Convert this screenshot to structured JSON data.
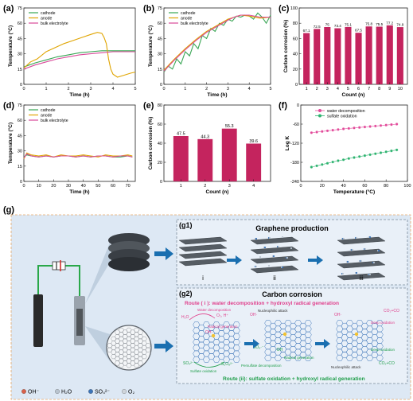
{
  "panel_labels": {
    "a": "(a)",
    "b": "(b)",
    "c": "(c)",
    "d": "(d)",
    "e": "(e)",
    "f": "(f)",
    "g": "(g)"
  },
  "colors": {
    "cathode": "#3aa655",
    "anode": "#e0a400",
    "bulk": "#d94a9a",
    "bar": "#c4245e",
    "water": "#e24a9a",
    "sulfate": "#2db36f",
    "panel_bg": "#dfeaf6"
  },
  "chart_data": [
    {
      "id": "a",
      "type": "line",
      "xlabel": "Time (h)",
      "ylabel": "Temperature (°C)",
      "xlim": [
        0,
        5
      ],
      "ylim": [
        0,
        75
      ],
      "xticks": [
        0,
        1,
        2,
        3,
        4,
        5
      ],
      "yticks": [
        0,
        15,
        30,
        45,
        60,
        75
      ],
      "legend": [
        "cathode",
        "anode",
        "bulk electrolyte"
      ],
      "series": [
        {
          "name": "cathode",
          "x": [
            0,
            0.5,
            1,
            1.5,
            2,
            2.5,
            3,
            3.5,
            4,
            4.5,
            5
          ],
          "y": [
            17,
            21,
            24,
            27,
            29,
            31,
            32,
            33,
            33,
            33,
            33
          ]
        },
        {
          "name": "anode",
          "x": [
            0,
            0.3,
            0.6,
            1,
            1.4,
            1.8,
            2.2,
            2.6,
            3,
            3.3,
            3.5,
            3.6,
            3.7,
            3.8,
            3.9,
            4,
            4.2,
            4.5,
            4.8,
            5
          ],
          "y": [
            16,
            22,
            25,
            32,
            36,
            40,
            43,
            46,
            49,
            51,
            50,
            46,
            40,
            25,
            15,
            10,
            7,
            9,
            11,
            12
          ]
        },
        {
          "name": "bulk electrolyte",
          "x": [
            0,
            0.5,
            1,
            1.5,
            2,
            2.5,
            3,
            3.5,
            4,
            4.5,
            5
          ],
          "y": [
            15,
            19,
            22,
            25,
            27,
            29,
            30,
            31,
            32,
            32,
            32
          ]
        }
      ]
    },
    {
      "id": "b",
      "type": "line",
      "xlabel": "Time (h)",
      "ylabel": "Temperature (°C)",
      "xlim": [
        0,
        5
      ],
      "ylim": [
        0,
        75
      ],
      "xticks": [
        0,
        1,
        2,
        3,
        4,
        5
      ],
      "yticks": [
        0,
        15,
        30,
        45,
        60,
        75
      ],
      "legend": [
        "cathode",
        "anode",
        "bulk electrolyte"
      ],
      "series": [
        {
          "name": "cathode",
          "x": [
            0,
            0.2,
            0.4,
            0.6,
            0.8,
            1,
            1.2,
            1.4,
            1.6,
            1.8,
            2,
            2.2,
            2.4,
            2.6,
            2.8,
            3,
            3.2,
            3.4,
            3.6,
            3.8,
            4,
            4.2,
            4.4,
            4.6,
            4.8,
            5
          ],
          "y": [
            12,
            18,
            15,
            25,
            20,
            32,
            28,
            40,
            35,
            48,
            45,
            55,
            52,
            60,
            58,
            64,
            62,
            67,
            66,
            68,
            67,
            64,
            70,
            66,
            60,
            68
          ]
        },
        {
          "name": "anode",
          "x": [
            0,
            0.5,
            1,
            1.5,
            2,
            2.5,
            3,
            3.3,
            3.6,
            4,
            4.5,
            5
          ],
          "y": [
            14,
            25,
            35,
            44,
            52,
            58,
            64,
            66,
            68,
            67,
            65,
            66
          ]
        },
        {
          "name": "bulk electrolyte",
          "x": [
            0,
            0.5,
            1,
            1.5,
            2,
            2.5,
            3,
            3.3,
            3.6,
            4,
            4.5,
            5
          ],
          "y": [
            13,
            24,
            34,
            43,
            51,
            57,
            63,
            66,
            68,
            68,
            66,
            66
          ]
        }
      ]
    },
    {
      "id": "c",
      "type": "bar",
      "xlabel": "Count (n)",
      "ylabel": "Carbon corrosion (%)",
      "ylim": [
        0,
        100
      ],
      "yticks": [
        0,
        20,
        40,
        60,
        80,
        100
      ],
      "categories": [
        "1",
        "2",
        "3",
        "4",
        "5",
        "6",
        "7",
        "8",
        "9",
        "10"
      ],
      "values": [
        67.1,
        72.5,
        75,
        73.4,
        75.1,
        67.5,
        75.8,
        75.5,
        77.2,
        74.9
      ],
      "labels": [
        "67.1",
        "72.5",
        "75",
        "73.4",
        "75.1",
        "67.5",
        "75.8",
        "75.5",
        "77.2",
        "74.9"
      ]
    },
    {
      "id": "d",
      "type": "line",
      "xlabel": "Time (h)",
      "ylabel": "Temperature (°C)",
      "xlim": [
        0,
        75
      ],
      "ylim": [
        0,
        75
      ],
      "xticks": [
        0,
        10,
        20,
        30,
        40,
        50,
        60,
        70
      ],
      "yticks": [
        0,
        15,
        30,
        45,
        60,
        75
      ],
      "legend": [
        "cathode",
        "anode",
        "bulk electrolyte"
      ],
      "series": [
        {
          "name": "cathode",
          "x": [
            0,
            2,
            5,
            10,
            15,
            20,
            25,
            30,
            35,
            40,
            45,
            50,
            55,
            60,
            65,
            70,
            73
          ],
          "y": [
            24,
            26,
            25,
            24,
            25,
            24,
            25,
            25,
            24,
            25,
            24,
            25,
            25,
            24,
            24,
            25,
            24
          ]
        },
        {
          "name": "anode",
          "x": [
            0,
            2,
            5,
            10,
            15,
            20,
            25,
            30,
            35,
            40,
            45,
            50,
            55,
            60,
            65,
            70,
            73
          ],
          "y": [
            22,
            28,
            26,
            25,
            26,
            24,
            26,
            25,
            25,
            26,
            25,
            24,
            26,
            25,
            25,
            26,
            25
          ]
        },
        {
          "name": "bulk electrolyte",
          "x": [
            0,
            2,
            5,
            10,
            15,
            20,
            25,
            30,
            35,
            40,
            45,
            50,
            55,
            60,
            65,
            70,
            73
          ],
          "y": [
            23,
            27,
            25,
            24,
            25,
            24,
            25,
            25,
            24,
            25,
            24,
            25,
            25,
            24,
            25,
            25,
            24
          ]
        }
      ]
    },
    {
      "id": "e",
      "type": "bar",
      "xlabel": "Count (n)",
      "ylabel": "Carbon corrosion (%)",
      "ylim": [
        0,
        80
      ],
      "yticks": [
        0,
        20,
        40,
        60,
        80
      ],
      "categories": [
        "1",
        "2",
        "3",
        "4"
      ],
      "values": [
        47.5,
        44.3,
        55.3,
        39.6
      ],
      "labels": [
        "47.5",
        "44.3",
        "55.3",
        "39.6"
      ]
    },
    {
      "id": "f",
      "type": "scatter",
      "xlabel": "Temperature (°C)",
      "ylabel": "Log K",
      "xlim": [
        0,
        100
      ],
      "ylim": [
        -240,
        0
      ],
      "xticks": [
        0,
        20,
        40,
        60,
        80,
        100
      ],
      "yticks": [
        -240,
        -180,
        -120,
        -60,
        0
      ],
      "legend": [
        "water decomposition",
        "sulfate oxidation"
      ],
      "series": [
        {
          "name": "water decomposition",
          "x": [
            10,
            15,
            20,
            25,
            30,
            35,
            40,
            45,
            50,
            55,
            60,
            65,
            70,
            75,
            80,
            85,
            90
          ],
          "y": [
            -87,
            -85,
            -83,
            -81,
            -79,
            -77,
            -75,
            -73.5,
            -72,
            -70.5,
            -69,
            -67.5,
            -66,
            -64.5,
            -63,
            -61.5,
            -60
          ]
        },
        {
          "name": "sulfate oxidation",
          "x": [
            10,
            15,
            20,
            25,
            30,
            35,
            40,
            45,
            50,
            55,
            60,
            65,
            70,
            75,
            80,
            85,
            90
          ],
          "y": [
            -195,
            -191,
            -187,
            -183,
            -179,
            -175,
            -172,
            -168,
            -165,
            -162,
            -159,
            -156,
            -153,
            -150,
            -147,
            -144,
            -141
          ]
        }
      ]
    }
  ],
  "g": {
    "g1_label": "(g1)",
    "g1_title": "Graphene production",
    "g1_steps": [
      "i",
      "ii",
      "iii"
    ],
    "g2_label": "(g2)",
    "g2_title": "Carbon corrosion",
    "route1": "Route ( i ): water decomposition + hydroxyl radical generation",
    "route2": "Route (ii): sulfate oxidation + hydroxyl radical generation",
    "ann": {
      "water_decomp": "Water decomposition",
      "h2o": "H₂O",
      "o2h": "O₂, H⁺",
      "radical_gen": "Radical generation",
      "oh": "OH·",
      "nucleophilic": "Nucleophilic attack",
      "deep_ox": "Deep oxidation",
      "co2co": "CO₂+CO",
      "so4": "SO₄²⁻",
      "s2o8": "S₂O₈²⁻",
      "so4r": "SO₄·⁻",
      "sulfate_ox": "Sulfate oxidation",
      "persulfate": "Persulfate decomposition",
      "radical_gen2": "Radical generation",
      "nucleophilic2": "Nucleophilic attack",
      "deep_ox2": "Deep oxidation",
      "co2co2": "CO₂+CO",
      "oh2": "OH·",
      "oh3": "·OH",
      "oh4": "OH·"
    },
    "legend": [
      {
        "label": "OH⁻",
        "color": "#d9604a"
      },
      {
        "label": "H₂O",
        "color": "#b9c4cf"
      },
      {
        "label": "SO₄²⁻",
        "color": "#3c74b8"
      },
      {
        "label": "O₂",
        "color": "#cfd5db"
      }
    ]
  }
}
